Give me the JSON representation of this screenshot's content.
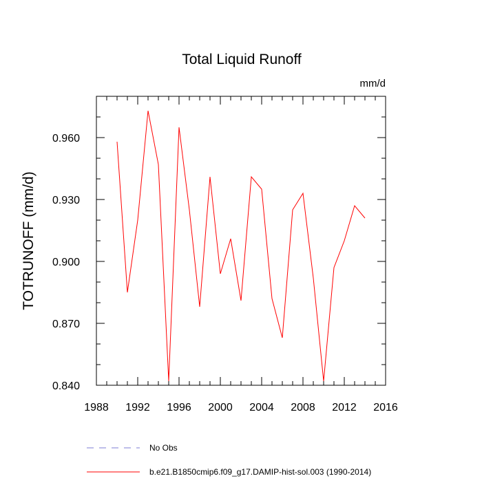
{
  "chart_data": {
    "type": "line",
    "title": "Total Liquid Runoff",
    "units": "mm/d",
    "ylabel": "TOTRUNOFF  (mm/d)",
    "xlabel": "",
    "xlim": [
      1988,
      2016
    ],
    "ylim": [
      0.84,
      0.98
    ],
    "x_ticks": [
      1988,
      1992,
      1996,
      2000,
      2004,
      2008,
      2012,
      2016
    ],
    "x_tick_labels": [
      "1988",
      "1992",
      "1996",
      "2000",
      "2004",
      "2008",
      "2012",
      "2016"
    ],
    "y_ticks": [
      0.84,
      0.87,
      0.9,
      0.93,
      0.96
    ],
    "y_tick_labels": [
      "0.840",
      "0.870",
      "0.900",
      "0.930",
      "0.960"
    ],
    "grid": false,
    "legend_position": "bottom",
    "series": [
      {
        "name": "No Obs",
        "color": "#7b7bd6",
        "line_style": "dashed",
        "x": [],
        "y": []
      },
      {
        "name": "b.e21.B1850cmip6.f09_g17.DAMIP-hist-sol.003 (1990-2014)",
        "color": "#ff0000",
        "line_style": "solid",
        "x": [
          1990,
          1991,
          1992,
          1993,
          1994,
          1995,
          1996,
          1997,
          1998,
          1999,
          2000,
          2001,
          2002,
          2003,
          2004,
          2005,
          2006,
          2007,
          2008,
          2009,
          2010,
          2011,
          2012,
          2013,
          2014
        ],
        "y": [
          0.958,
          0.885,
          0.92,
          0.973,
          0.947,
          0.842,
          0.965,
          0.925,
          0.878,
          0.941,
          0.894,
          0.911,
          0.881,
          0.941,
          0.935,
          0.882,
          0.863,
          0.925,
          0.933,
          0.892,
          0.842,
          0.897,
          0.91,
          0.927,
          0.921
        ]
      }
    ]
  }
}
